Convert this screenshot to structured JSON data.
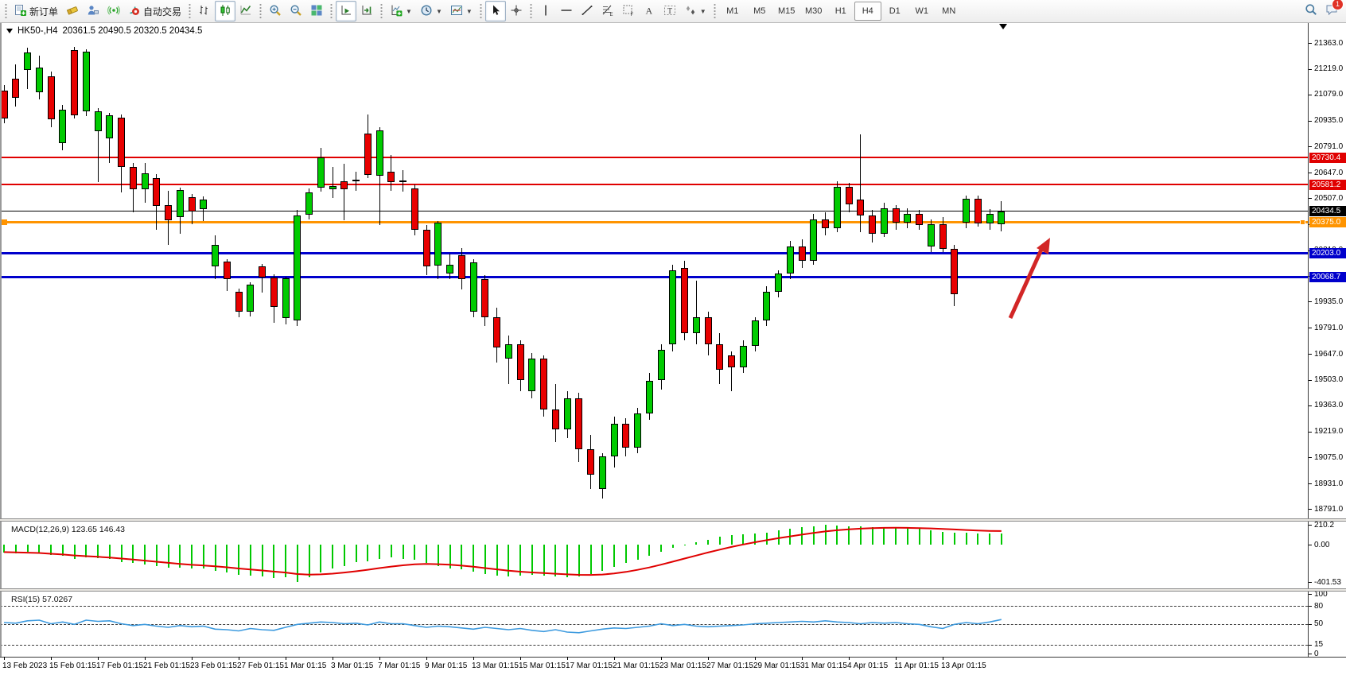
{
  "window": {
    "notification_count": "1"
  },
  "toolbar": {
    "groups": [
      [
        {
          "name": "new-order",
          "label": "新订单"
        },
        {
          "name": "eraser"
        },
        {
          "name": "publisher"
        },
        {
          "name": "news"
        },
        {
          "name": "auto-trading",
          "label": "自动交易"
        }
      ],
      [
        {
          "name": "bar-chart"
        },
        {
          "name": "candlestick-chart",
          "active": true
        },
        {
          "name": "line-chart"
        }
      ],
      [
        {
          "name": "zoom-in"
        },
        {
          "name": "zoom-out"
        },
        {
          "name": "tile-windows"
        }
      ],
      [
        {
          "name": "auto-scroll",
          "active": true
        },
        {
          "name": "chart-shift"
        }
      ],
      [
        {
          "name": "add-indicator",
          "caret": true
        },
        {
          "name": "periods",
          "caret": true
        },
        {
          "name": "templates",
          "caret": true
        }
      ],
      [
        {
          "name": "cursor",
          "active": true
        },
        {
          "name": "crosshair"
        }
      ],
      [
        {
          "name": "vertical-line"
        },
        {
          "name": "horizontal-line"
        },
        {
          "name": "trend-line"
        },
        {
          "name": "fibonacci"
        },
        {
          "name": "cycle-grid"
        },
        {
          "name": "text"
        },
        {
          "name": "text-label"
        },
        {
          "name": "arrows",
          "caret": true
        }
      ]
    ],
    "timeframes": [
      "M1",
      "M5",
      "M15",
      "M30",
      "H1",
      "H4",
      "D1",
      "W1",
      "MN"
    ],
    "active_timeframe": "H4"
  },
  "chart": {
    "title": "HK50-,H4",
    "ohlc_display": "20361.5 20490.5 20320.5 20434.5",
    "price_ticks": [
      "21363.0",
      "21219.0",
      "21079.0",
      "20935.0",
      "20791.0",
      "20647.0",
      "20507.0",
      "20363.0",
      "20219.0",
      "20079.0",
      "19935.0",
      "19791.0",
      "19647.0",
      "19503.0",
      "19363.0",
      "19219.0",
      "19075.0",
      "18931.0",
      "18791.0"
    ],
    "hlines": [
      {
        "price": 20730.4,
        "color": "#e00000",
        "width": 2,
        "badge": "20730.4"
      },
      {
        "price": 20581.2,
        "color": "#e00000",
        "width": 2,
        "badge": "20581.2"
      },
      {
        "price": 20434.5,
        "color": "#000000",
        "width": 1,
        "badge": "20434.5"
      },
      {
        "price": 20375.0,
        "color": "#ff9400",
        "width": 3,
        "badge": "20375.0",
        "handles": true
      },
      {
        "price": 20203.0,
        "color": "#0000cc",
        "width": 3,
        "badge": "20203.0"
      },
      {
        "price": 20068.7,
        "color": "#0000cc",
        "width": 3,
        "badge": "20068.7"
      }
    ],
    "time_labels": [
      "13 Feb 2023",
      "15 Feb 01:15",
      "17 Feb 01:15",
      "21 Feb 01:15",
      "23 Feb 01:15",
      "27 Feb 01:15",
      "1 Mar 01:15",
      "3 Mar 01:15",
      "7 Mar 01:15",
      "9 Mar 01:15",
      "13 Mar 01:15",
      "15 Mar 01:15",
      "17 Mar 01:15",
      "21 Mar 01:15",
      "23 Mar 01:15",
      "27 Mar 01:15",
      "29 Mar 01:15",
      "31 Mar 01:15",
      "4 Apr 01:15",
      "11 Apr 01:15",
      "13 Apr 01:15"
    ]
  },
  "chart_data": {
    "type": "candlestick",
    "symbol": "HK50-",
    "timeframe": "H4",
    "current_bar": {
      "open": 20361.5,
      "high": 20490.5,
      "low": 20320.5,
      "close": 20434.5
    },
    "support_resistance_levels": [
      20730.4,
      20581.2,
      20375.0,
      20203.0,
      20068.7
    ],
    "candles": [
      [
        21100,
        21130,
        20920,
        20945
      ],
      [
        21165,
        21245,
        21010,
        21060
      ],
      [
        21215,
        21337,
        21110,
        21310
      ],
      [
        21090,
        21295,
        21050,
        21225
      ],
      [
        21180,
        21205,
        20900,
        20940
      ],
      [
        20810,
        21020,
        20770,
        20995
      ],
      [
        21325,
        21340,
        20945,
        20965
      ],
      [
        20985,
        21330,
        20960,
        21315
      ],
      [
        20875,
        21005,
        20595,
        20985
      ],
      [
        20835,
        20975,
        20700,
        20965
      ],
      [
        20950,
        20970,
        20540,
        20680
      ],
      [
        20680,
        20700,
        20430,
        20555
      ],
      [
        20555,
        20700,
        20480,
        20645
      ],
      [
        20615,
        20640,
        20330,
        20465
      ],
      [
        20470,
        20545,
        20250,
        20385
      ],
      [
        20400,
        20565,
        20310,
        20550
      ],
      [
        20510,
        20530,
        20360,
        20430
      ],
      [
        20445,
        20515,
        20380,
        20500
      ],
      [
        20130,
        20300,
        20060,
        20250
      ],
      [
        20155,
        20170,
        19995,
        20060
      ],
      [
        19990,
        20005,
        19850,
        19880
      ],
      [
        19880,
        20040,
        19855,
        20030
      ],
      [
        20130,
        20145,
        19985,
        20070
      ],
      [
        20070,
        20085,
        19820,
        19905
      ],
      [
        19845,
        20075,
        19810,
        20065
      ],
      [
        19830,
        20440,
        19800,
        20410
      ],
      [
        20415,
        20560,
        20390,
        20540
      ],
      [
        20565,
        20785,
        20540,
        20730
      ],
      [
        20555,
        20680,
        20505,
        20575
      ],
      [
        20600,
        20695,
        20385,
        20555
      ],
      [
        20600,
        20650,
        20545,
        20610
      ],
      [
        20865,
        20970,
        20615,
        20635
      ],
      [
        20630,
        20900,
        20360,
        20880
      ],
      [
        20650,
        20745,
        20545,
        20595
      ],
      [
        20600,
        20660,
        20540,
        20605
      ],
      [
        20560,
        20580,
        20300,
        20330
      ],
      [
        20330,
        20360,
        20080,
        20130
      ],
      [
        20135,
        20380,
        20060,
        20370
      ],
      [
        20090,
        20200,
        20060,
        20140
      ],
      [
        20190,
        20230,
        20000,
        20060
      ],
      [
        19880,
        20170,
        19850,
        20150
      ],
      [
        20060,
        20080,
        19800,
        19850
      ],
      [
        19850,
        19900,
        19600,
        19680
      ],
      [
        19620,
        19750,
        19480,
        19700
      ],
      [
        19700,
        19720,
        19440,
        19500
      ],
      [
        19440,
        19650,
        19400,
        19620
      ],
      [
        19620,
        19640,
        19300,
        19340
      ],
      [
        19340,
        19480,
        19160,
        19230
      ],
      [
        19230,
        19440,
        19180,
        19400
      ],
      [
        19400,
        19430,
        19050,
        19120
      ],
      [
        19120,
        19200,
        18900,
        18980
      ],
      [
        18900,
        19100,
        18850,
        19080
      ],
      [
        19080,
        19300,
        19020,
        19260
      ],
      [
        19260,
        19290,
        19080,
        19130
      ],
      [
        19130,
        19350,
        19100,
        19320
      ],
      [
        19320,
        19540,
        19280,
        19500
      ],
      [
        19500,
        19700,
        19450,
        19670
      ],
      [
        19700,
        20140,
        19660,
        20110
      ],
      [
        20120,
        20160,
        19720,
        19760
      ],
      [
        19760,
        20050,
        19700,
        19850
      ],
      [
        19850,
        19880,
        19640,
        19700
      ],
      [
        19700,
        19760,
        19480,
        19560
      ],
      [
        19640,
        19660,
        19440,
        19570
      ],
      [
        19570,
        19720,
        19540,
        19690
      ],
      [
        19690,
        19850,
        19660,
        19830
      ],
      [
        19830,
        20020,
        19800,
        19990
      ],
      [
        19990,
        20110,
        19960,
        20090
      ],
      [
        20090,
        20270,
        20060,
        20240
      ],
      [
        20240,
        20280,
        20120,
        20160
      ],
      [
        20160,
        20420,
        20140,
        20390
      ],
      [
        20390,
        20430,
        20300,
        20340
      ],
      [
        20340,
        20600,
        20320,
        20570
      ],
      [
        20570,
        20590,
        20430,
        20470
      ],
      [
        20500,
        20860,
        20320,
        20410
      ],
      [
        20410,
        20440,
        20260,
        20310
      ],
      [
        20310,
        20480,
        20290,
        20450
      ],
      [
        20450,
        20470,
        20330,
        20370
      ],
      [
        20370,
        20450,
        20340,
        20420
      ],
      [
        20420,
        20440,
        20330,
        20360
      ],
      [
        20240,
        20390,
        20210,
        20363
      ],
      [
        20363,
        20400,
        20210,
        20226
      ],
      [
        20226,
        20250,
        19910,
        19976
      ],
      [
        20372,
        20520,
        20340,
        20503
      ],
      [
        20503,
        20520,
        20350,
        20365
      ],
      [
        20365,
        20445,
        20330,
        20420
      ],
      [
        20361.5,
        20490.5,
        20320.5,
        20434.5
      ]
    ],
    "indicators": {
      "macd": {
        "label": "MACD(12,26,9)",
        "display_values": "123.65 146.43",
        "scale_labels": [
          "210.2",
          "0.00",
          "-401.53"
        ],
        "histogram": [
          -85,
          -92,
          -80,
          -86,
          -112,
          -120,
          -150,
          -138,
          -148,
          -155,
          -185,
          -200,
          -212,
          -230,
          -248,
          -250,
          -255,
          -252,
          -280,
          -300,
          -328,
          -330,
          -340,
          -362,
          -352,
          -400,
          -350,
          -298,
          -258,
          -228,
          -190,
          -178,
          -150,
          -140,
          -152,
          -162,
          -200,
          -228,
          -252,
          -268,
          -290,
          -312,
          -330,
          -342,
          -330,
          -322,
          -332,
          -342,
          -352,
          -340,
          -318,
          -278,
          -238,
          -198,
          -158,
          -118,
          -78,
          -38,
          -8,
          22,
          52,
          82,
          102,
          112,
          122,
          132,
          152,
          172,
          190,
          200,
          210,
          205,
          200,
          196,
          191,
          187,
          182,
          177,
          168,
          152,
          140,
          132,
          126,
          122,
          122,
          123.65
        ],
        "signal": [
          -80,
          -84,
          -86,
          -90,
          -98,
          -106,
          -116,
          -124,
          -131,
          -139,
          -150,
          -161,
          -172,
          -184,
          -196,
          -207,
          -217,
          -224,
          -233,
          -244,
          -256,
          -267,
          -278,
          -290,
          -300,
          -316,
          -322,
          -320,
          -312,
          -300,
          -286,
          -270,
          -252,
          -236,
          -222,
          -212,
          -208,
          -210,
          -216,
          -226,
          -238,
          -252,
          -266,
          -280,
          -291,
          -299,
          -306,
          -313,
          -320,
          -325,
          -326,
          -321,
          -310,
          -293,
          -271,
          -245,
          -215,
          -183,
          -150,
          -117,
          -85,
          -54,
          -25,
          2,
          26,
          48,
          69,
          89,
          108,
          126,
          142,
          155,
          165,
          172,
          177,
          180,
          181,
          180,
          178,
          174,
          169,
          163,
          157,
          152,
          148,
          146.43
        ]
      },
      "rsi": {
        "label": "RSI(15)",
        "display_value": "57.0267",
        "scale_labels": [
          "100",
          "80",
          "50",
          "15",
          "0"
        ],
        "levels": [
          80,
          50,
          15
        ],
        "values": [
          52,
          51,
          55,
          56,
          50,
          53,
          49,
          56,
          54,
          55,
          50,
          47,
          49,
          46,
          44,
          47,
          45,
          46,
          41,
          40,
          38,
          42,
          40,
          39,
          44,
          49,
          51,
          53,
          52,
          50,
          51,
          48,
          53,
          50,
          50,
          47,
          44,
          46,
          45,
          43,
          41,
          44,
          42,
          40,
          42,
          39,
          37,
          40,
          36,
          35,
          38,
          41,
          43,
          42,
          44,
          46,
          50,
          47,
          49,
          46,
          45,
          46,
          47,
          48,
          50,
          51,
          52,
          53,
          54,
          53,
          55,
          53,
          52,
          50,
          52,
          51,
          52,
          50,
          49,
          45,
          42,
          49,
          52,
          50,
          53,
          57.03
        ]
      }
    }
  },
  "annotation_arrow": {
    "color": "#d22626"
  }
}
